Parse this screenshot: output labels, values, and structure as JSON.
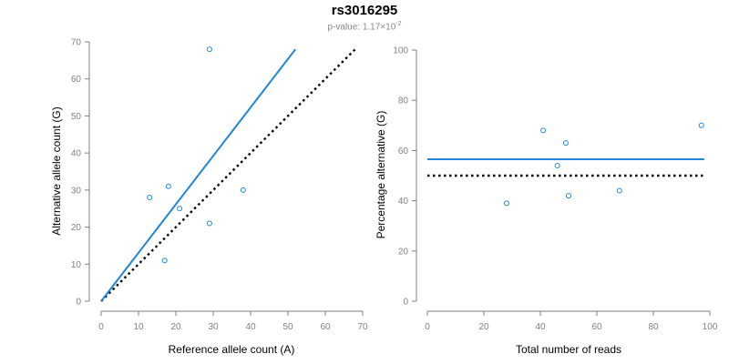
{
  "title": "rs3016295",
  "subtitle": {
    "prefix": "p-value: ",
    "mantissa": "1.17",
    "times": "×",
    "base": "10",
    "exponent": "-2"
  },
  "colors": {
    "series": "#1f86d9",
    "null_line": "#000000",
    "axis": "#808080"
  },
  "chart_data": [
    {
      "type": "scatter",
      "xlabel": "Reference allele count (A)",
      "ylabel": "Alternative allele count (G)",
      "xlim": [
        0,
        70
      ],
      "ylim": [
        0,
        70
      ],
      "xticks": [
        0,
        10,
        20,
        30,
        40,
        50,
        60,
        70
      ],
      "yticks": [
        0,
        10,
        20,
        30,
        40,
        50,
        60,
        70
      ],
      "grid": false,
      "points": [
        {
          "x": 13,
          "y": 28
        },
        {
          "x": 18,
          "y": 31
        },
        {
          "x": 21,
          "y": 25
        },
        {
          "x": 17,
          "y": 11
        },
        {
          "x": 29,
          "y": 68
        },
        {
          "x": 29,
          "y": 21
        },
        {
          "x": 38,
          "y": 30
        }
      ],
      "fit_line": {
        "style": "solid",
        "x": [
          0,
          52
        ],
        "y": [
          0,
          68
        ]
      },
      "null_line": {
        "style": "dotted",
        "x": [
          0,
          68
        ],
        "y": [
          0,
          68
        ]
      }
    },
    {
      "type": "scatter",
      "xlabel": "Total number of reads",
      "ylabel": "Percentage alternative (G)",
      "xlim": [
        0,
        100
      ],
      "ylim": [
        0,
        100
      ],
      "xticks": [
        0,
        20,
        40,
        60,
        80,
        100
      ],
      "yticks": [
        0,
        20,
        40,
        60,
        80,
        100
      ],
      "grid": false,
      "points": [
        {
          "x": 28,
          "y": 39
        },
        {
          "x": 41,
          "y": 68
        },
        {
          "x": 46,
          "y": 54
        },
        {
          "x": 49,
          "y": 63
        },
        {
          "x": 50,
          "y": 42
        },
        {
          "x": 68,
          "y": 44
        },
        {
          "x": 97,
          "y": 70
        }
      ],
      "fit_line": {
        "style": "solid",
        "x": [
          0,
          98
        ],
        "y": [
          56.5,
          56.5
        ]
      },
      "null_line": {
        "style": "dotted",
        "x": [
          0,
          98
        ],
        "y": [
          50,
          50
        ]
      }
    }
  ]
}
